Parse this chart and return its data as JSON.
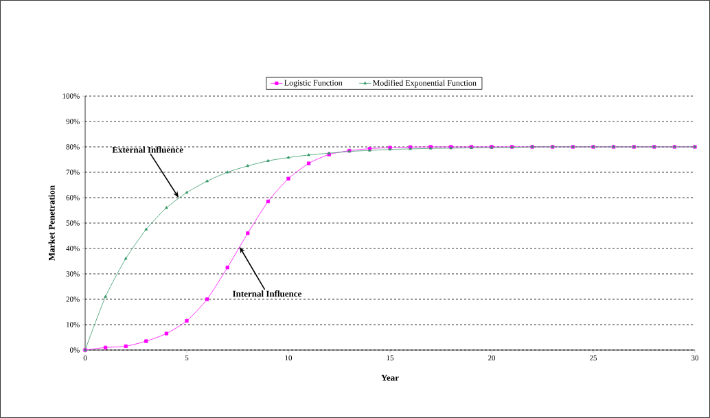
{
  "chart_data": {
    "type": "line",
    "xlabel": "Year",
    "ylabel": "Market Penetration",
    "x": [
      0,
      1,
      2,
      3,
      4,
      5,
      6,
      7,
      8,
      9,
      10,
      11,
      12,
      13,
      14,
      15,
      16,
      17,
      18,
      19,
      20,
      21,
      22,
      23,
      24,
      25,
      26,
      27,
      28,
      29,
      30
    ],
    "series": [
      {
        "name": "Logistic Function",
        "color": "#ff00ff",
        "marker": "square",
        "values": [
          0,
          1,
          1.5,
          3.5,
          6.5,
          11.5,
          20,
          32.5,
          46,
          58.5,
          67.5,
          73.5,
          77,
          78.5,
          79.3,
          79.7,
          79.9,
          80,
          80,
          80,
          80,
          80,
          80,
          80,
          80,
          80,
          80,
          80,
          80,
          80,
          80
        ]
      },
      {
        "name": "Modified Exponential Function",
        "color": "#339966",
        "marker": "triangle",
        "values": [
          0,
          21,
          36,
          47.5,
          56,
          62,
          66.5,
          70,
          72.5,
          74.5,
          75.8,
          76.8,
          77.5,
          78.2,
          78.6,
          79,
          79.2,
          79.4,
          79.5,
          79.6,
          79.7,
          79.8,
          80,
          80,
          80,
          80,
          80,
          80,
          80,
          80,
          80
        ]
      }
    ],
    "xlim": [
      0,
      30
    ],
    "xticks": [
      0,
      5,
      10,
      15,
      20,
      25,
      30
    ],
    "ylim": [
      0,
      100
    ],
    "yticks": [
      {
        "value": 0,
        "label": "0%"
      },
      {
        "value": 10,
        "label": "10%"
      },
      {
        "value": 20,
        "label": "20%"
      },
      {
        "value": 30,
        "label": "30%"
      },
      {
        "value": 40,
        "label": "40%"
      },
      {
        "value": 50,
        "label": "50%"
      },
      {
        "value": 60,
        "label": "60%"
      },
      {
        "value": 70,
        "label": "70%"
      },
      {
        "value": 80,
        "label": "80%"
      },
      {
        "value": 90,
        "label": "90%"
      },
      {
        "value": 100,
        "label": "100%"
      }
    ],
    "grid": "y",
    "legend": "top",
    "line_style": "solid",
    "annotations": [
      {
        "text": "External Influence",
        "x": 4.6,
        "y": 60
      },
      {
        "text": "Internal Influence",
        "x": 7.6,
        "y": 40.6
      }
    ]
  }
}
